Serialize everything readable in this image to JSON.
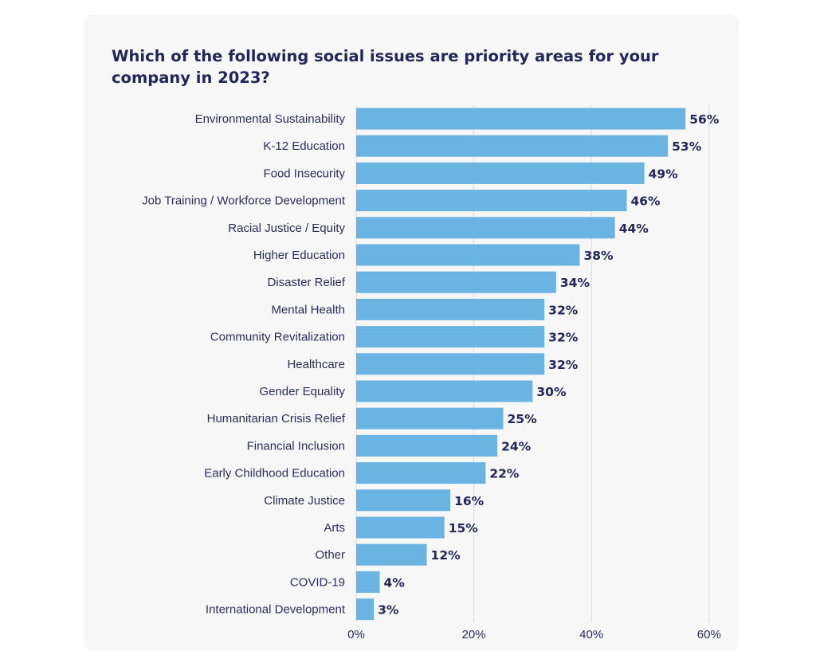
{
  "chart_data": {
    "type": "bar",
    "orientation": "horizontal",
    "title": "Which of the following social issues are priority areas for your company in 2023?",
    "categories": [
      "Environmental Sustainability",
      "K-12 Education",
      "Food Insecurity",
      "Job Training / Workforce Development",
      "Racial Justice / Equity",
      "Higher Education",
      "Disaster Relief",
      "Mental Health",
      "Community Revitalization",
      "Healthcare",
      "Gender Equality",
      "Humanitarian Crisis Relief",
      "Financial Inclusion",
      "Early Childhood Education",
      "Climate Justice",
      "Arts",
      "Other",
      "COVID-19",
      "International Development"
    ],
    "values": [
      56,
      53,
      49,
      46,
      44,
      38,
      34,
      32,
      32,
      32,
      30,
      25,
      24,
      22,
      16,
      15,
      12,
      4,
      3
    ],
    "value_labels": [
      "56%",
      "53%",
      "49%",
      "46%",
      "44%",
      "38%",
      "34%",
      "32%",
      "32%",
      "32%",
      "30%",
      "25%",
      "24%",
      "22%",
      "16%",
      "15%",
      "12%",
      "4%",
      "3%"
    ],
    "xlim": [
      0,
      60
    ],
    "x_ticks": [
      0,
      20,
      40,
      60
    ],
    "x_tick_labels": [
      "0%",
      "20%",
      "40%",
      "60%"
    ],
    "grid": "vertical",
    "legend": "none",
    "bar_color": "#69b4e3",
    "text_color": "#23265a"
  }
}
